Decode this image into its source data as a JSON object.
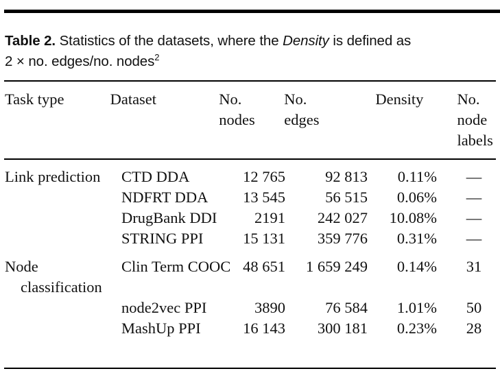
{
  "caption": {
    "label": "Table 2.",
    "text_before": " Statistics of the datasets, where the ",
    "italic": "Density",
    "text_after": " is defined as",
    "line2": "2 × no. edges/no. nodes",
    "superscript": "2"
  },
  "headers": [
    "Task type",
    "Dataset",
    "No. nodes",
    "No. edges",
    "Density",
    "No. node labels"
  ],
  "rows": [
    {
      "task": "Link prediction",
      "dataset": "CTD DDA",
      "nodes": "12 765",
      "edges": "92 813",
      "density": "0.11%",
      "labels": "—"
    },
    {
      "task": "",
      "dataset": "NDFRT DDA",
      "nodes": "13 545",
      "edges": "56 515",
      "density": "0.06%",
      "labels": "—"
    },
    {
      "task": "",
      "dataset": "DrugBank DDI",
      "nodes": "2191",
      "edges": "242 027",
      "density": "10.08%",
      "labels": "—"
    },
    {
      "task": "",
      "dataset": "STRING PPI",
      "nodes": "15 131",
      "edges": "359 776",
      "density": "0.31%",
      "labels": "—"
    },
    {
      "task": "Node classification",
      "dataset": "Clin Term COOC",
      "nodes": "48 651",
      "edges": "1 659 249",
      "density": "0.14%",
      "labels": "31"
    },
    {
      "task": "",
      "dataset": "node2vec PPI",
      "nodes": "3890",
      "edges": "76 584",
      "density": "1.01%",
      "labels": "50"
    },
    {
      "task": "",
      "dataset": "MashUp PPI",
      "nodes": "16 143",
      "edges": "300 181",
      "density": "0.23%",
      "labels": "28"
    }
  ]
}
